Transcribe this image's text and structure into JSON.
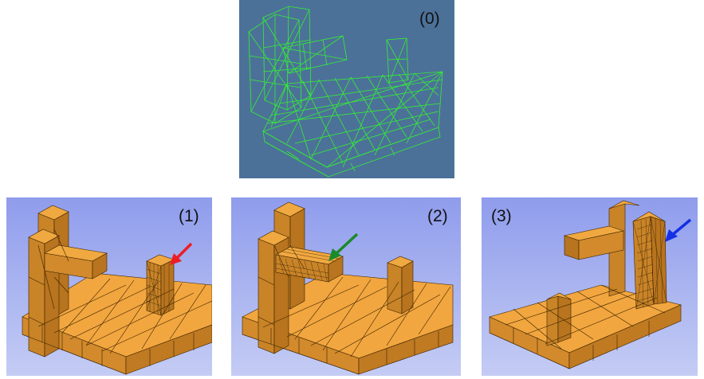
{
  "panels": [
    {
      "label": "(0)",
      "style": "wireframe",
      "background": "#4c7199",
      "mesh_color": "#33ee33"
    },
    {
      "label": "(1)",
      "style": "shaded",
      "background": "#9aa6ee",
      "mesh_color": "#e89a3a",
      "arrow_color": "#ee1c24"
    },
    {
      "label": "(2)",
      "style": "shaded",
      "background": "#9aa6ee",
      "mesh_color": "#e89a3a",
      "arrow_color": "#1a8a2a"
    },
    {
      "label": "(3)",
      "style": "shaded",
      "background": "#9aa6ee",
      "mesh_color": "#e89a3a",
      "arrow_color": "#1530e6"
    }
  ]
}
